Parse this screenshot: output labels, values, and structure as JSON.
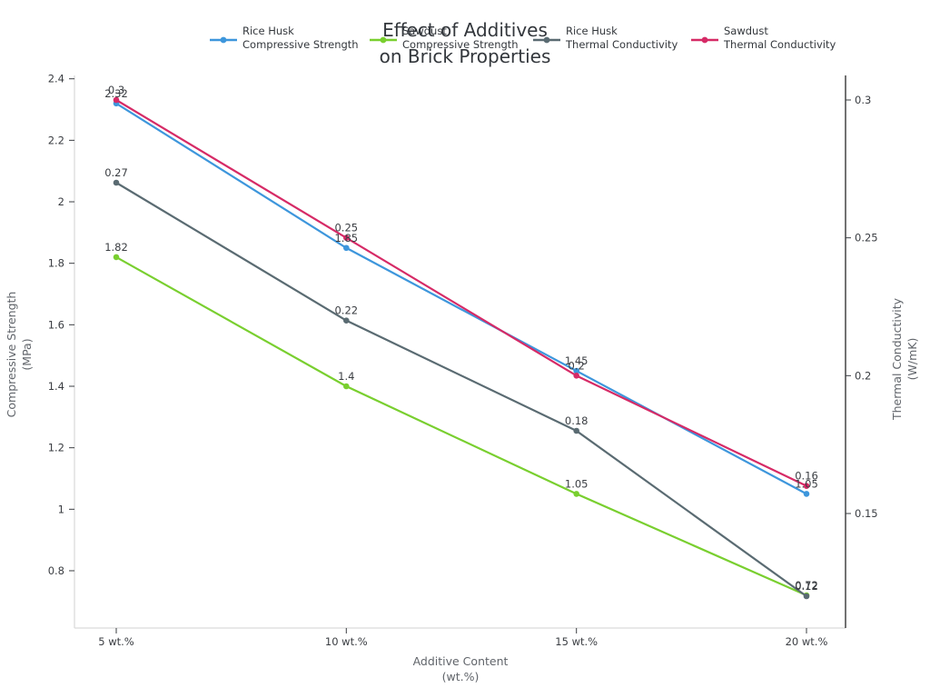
{
  "title": {
    "line1": "Effect of Additives",
    "line2": "on Brick Properties"
  },
  "axis_titles": {
    "x_line1": "Additive Content",
    "x_line2": "(wt.%)",
    "left_line1": "Compressive Strength",
    "left_line2": "(MPa)",
    "right_line1": "Thermal Conductivity",
    "right_line2": "(W/mK)"
  },
  "legend": {
    "entries": [
      {
        "name": "Rice Husk",
        "property": "Compressive Strength",
        "color": "#3d96dc"
      },
      {
        "name": "Sawdust",
        "property": "Compressive Strength",
        "color": "#79cf2f"
      },
      {
        "name": "Rice Husk",
        "property": "Thermal Conductivity",
        "color": "#5a6b72"
      },
      {
        "name": "Sawdust",
        "property": "Thermal Conductivity",
        "color": "#d62a66"
      }
    ]
  },
  "chart_data": {
    "type": "line",
    "title": "Effect of Additives on Brick Properties",
    "categories": [
      "5 wt.%",
      "10 wt.%",
      "15 wt.%",
      "20 wt.%"
    ],
    "x_values": [
      5,
      10,
      15,
      20
    ],
    "xlabel": "Additive Content (wt.%)",
    "grid": false,
    "legend_position": "top",
    "axis_left": {
      "label": "Compressive Strength (MPa)",
      "ticks": [
        "2.4",
        "2.2",
        "2",
        "1.8",
        "1.6",
        "1.4",
        "1.2",
        "1",
        "0.8"
      ],
      "range": [
        0.61,
        2.41
      ]
    },
    "axis_right": {
      "label": "Thermal Conductivity (W/mK)",
      "ticks": [
        "0.3",
        "0.25",
        "0.2",
        "0.15"
      ],
      "range": [
        0.108,
        0.309
      ]
    },
    "series": [
      {
        "name": "Rice Husk",
        "property": "Compressive Strength",
        "axis": "left",
        "color": "#3d96dc",
        "marker": "circle",
        "values": [
          2.32,
          1.85,
          1.45,
          1.05
        ],
        "labels": [
          "2.32",
          "1.85",
          "1.45",
          "1.05"
        ]
      },
      {
        "name": "Sawdust",
        "property": "Compressive Strength",
        "axis": "left",
        "color": "#79cf2f",
        "marker": "circle",
        "values": [
          1.82,
          1.4,
          1.05,
          0.72
        ],
        "labels": [
          "1.82",
          "1.4",
          "1.05",
          "0.72"
        ]
      },
      {
        "name": "Rice Husk",
        "property": "Thermal Conductivity",
        "axis": "right",
        "color": "#5a6b72",
        "marker": "circle",
        "values": [
          0.27,
          0.22,
          0.18,
          0.12
        ],
        "labels": [
          "0.27",
          "0.22",
          "0.18",
          "0.12"
        ]
      },
      {
        "name": "Sawdust",
        "property": "Thermal Conductivity",
        "axis": "right",
        "color": "#d62a66",
        "marker": "circle",
        "values": [
          0.3,
          0.25,
          0.2,
          0.16
        ],
        "labels": [
          "0.3",
          "0.25",
          "0.2",
          "0.16"
        ]
      }
    ]
  }
}
